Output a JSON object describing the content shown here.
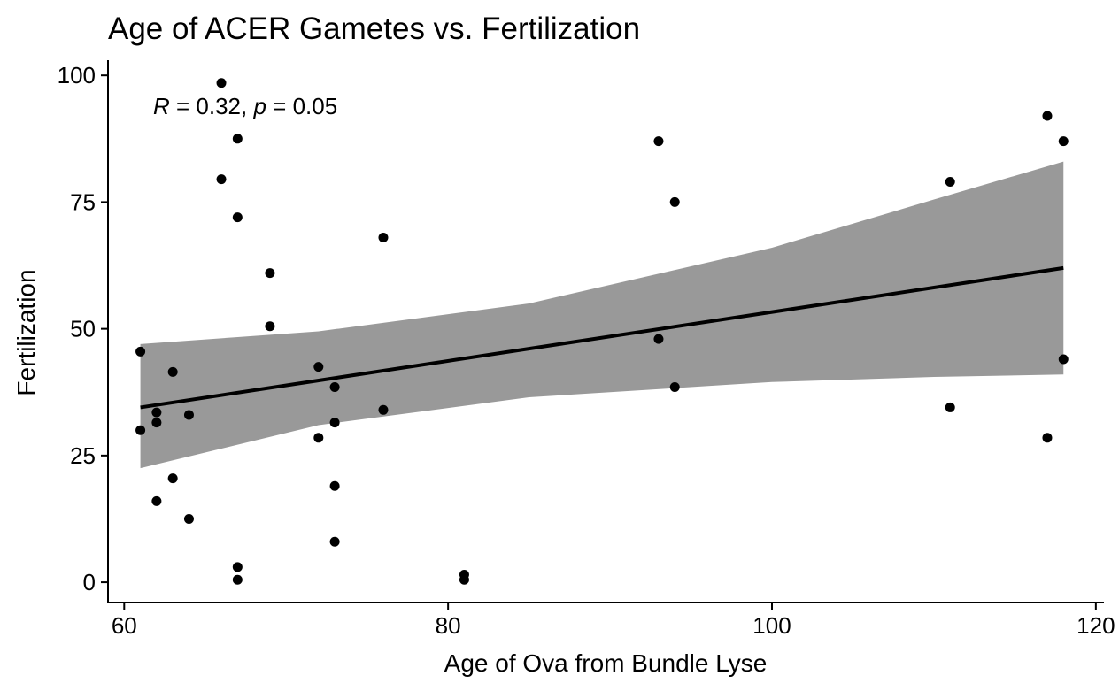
{
  "chart_data": {
    "type": "scatter",
    "title": "Age of ACER Gametes vs. Fertilization",
    "xlabel": "Age of Ova from Bundle Lyse",
    "ylabel": "Fertilization",
    "xlim": [
      59,
      120.5
    ],
    "ylim": [
      -4,
      103
    ],
    "x_ticks": [
      60,
      80,
      100,
      120
    ],
    "y_ticks": [
      0,
      25,
      50,
      75,
      100
    ],
    "x_tick_labels": [
      "60",
      "80",
      "100",
      "120"
    ],
    "y_tick_labels": [
      "0",
      "25",
      "50",
      "75",
      "100"
    ],
    "grid": false,
    "legend": "none",
    "annotation": {
      "r_symbol": "R",
      "r_eq": " = 0.32, ",
      "p_symbol": "p",
      "p_eq": " = 0.05"
    },
    "points": [
      {
        "x": 61,
        "y": 45.5
      },
      {
        "x": 61,
        "y": 30
      },
      {
        "x": 62,
        "y": 33.5
      },
      {
        "x": 62,
        "y": 31.5
      },
      {
        "x": 62,
        "y": 16
      },
      {
        "x": 63,
        "y": 41.5
      },
      {
        "x": 63,
        "y": 20.5
      },
      {
        "x": 64,
        "y": 33
      },
      {
        "x": 64,
        "y": 12.5
      },
      {
        "x": 66,
        "y": 98.5
      },
      {
        "x": 66,
        "y": 79.5
      },
      {
        "x": 67,
        "y": 87.5
      },
      {
        "x": 67,
        "y": 72
      },
      {
        "x": 67,
        "y": 3
      },
      {
        "x": 67,
        "y": 0.5
      },
      {
        "x": 69,
        "y": 61
      },
      {
        "x": 69,
        "y": 50.5
      },
      {
        "x": 72,
        "y": 42.5
      },
      {
        "x": 72,
        "y": 28.5
      },
      {
        "x": 73,
        "y": 38.5
      },
      {
        "x": 73,
        "y": 31.5
      },
      {
        "x": 73,
        "y": 19
      },
      {
        "x": 73,
        "y": 8
      },
      {
        "x": 76,
        "y": 68
      },
      {
        "x": 76,
        "y": 34
      },
      {
        "x": 81,
        "y": 1.5
      },
      {
        "x": 81,
        "y": 0.5
      },
      {
        "x": 93,
        "y": 87
      },
      {
        "x": 93,
        "y": 48
      },
      {
        "x": 94,
        "y": 75
      },
      {
        "x": 94,
        "y": 38.5
      },
      {
        "x": 111,
        "y": 79
      },
      {
        "x": 111,
        "y": 34.5
      },
      {
        "x": 117,
        "y": 92
      },
      {
        "x": 117,
        "y": 28.5
      },
      {
        "x": 118,
        "y": 87
      },
      {
        "x": 118,
        "y": 44
      }
    ],
    "fit_line": {
      "x": [
        61,
        118
      ],
      "y": [
        34.5,
        62
      ]
    },
    "confidence_band": {
      "x": [
        61,
        72,
        85,
        100,
        110,
        118
      ],
      "lower": [
        22.5,
        31,
        36.5,
        39.5,
        40.5,
        41
      ],
      "upper": [
        47,
        49.5,
        55,
        66,
        75.5,
        83
      ]
    },
    "colors": {
      "points": "#000000",
      "fit_line": "#000000",
      "band": "#999999",
      "axis": "#000000"
    }
  }
}
